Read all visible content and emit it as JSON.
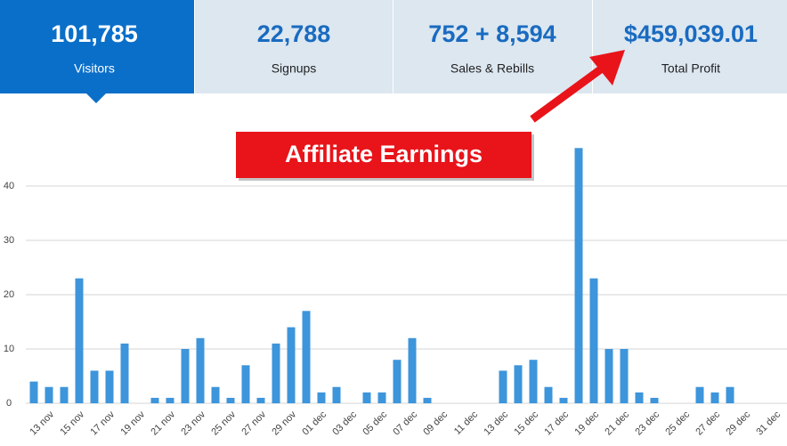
{
  "stats": [
    {
      "value": "101,785",
      "label": "Visitors"
    },
    {
      "value": "22,788",
      "label": "Signups"
    },
    {
      "value": "752 + 8,594",
      "label": "Sales & Rebills"
    },
    {
      "value": "$459,039.01",
      "label": "Total Profit"
    }
  ],
  "annotation": "Affiliate Earnings",
  "chart_data": {
    "type": "bar",
    "categories": [
      null,
      "13 nov",
      null,
      "15 nov",
      null,
      "17 nov",
      null,
      "19 nov",
      null,
      "21 nov",
      null,
      "23 nov",
      null,
      "25 nov",
      null,
      "27 nov",
      null,
      "29 nov",
      null,
      "01 dec",
      null,
      "03 dec",
      null,
      "05 dec",
      null,
      "07 dec",
      null,
      "09 dec",
      null,
      "11 dec",
      null,
      "13 dec",
      null,
      "15 dec",
      null,
      "17 dec",
      null,
      "19 dec",
      null,
      "21 dec",
      null,
      "23 dec",
      null,
      "25 dec",
      null,
      "27 dec",
      null,
      "29 dec",
      null,
      "31 dec"
    ],
    "values": [
      4,
      3,
      3,
      23,
      6,
      6,
      11,
      0,
      1,
      1,
      10,
      12,
      3,
      1,
      7,
      1,
      11,
      14,
      17,
      2,
      3,
      0,
      2,
      2,
      8,
      12,
      1,
      0,
      0,
      0,
      0,
      6,
      7,
      8,
      3,
      1,
      47,
      23,
      10,
      10,
      2,
      1,
      0,
      0,
      3,
      2,
      3,
      0,
      0,
      0
    ],
    "color": "#3d95db",
    "ylim": [
      0,
      50
    ],
    "yticks": [
      0,
      10,
      20,
      30,
      40
    ],
    "grid": true
  }
}
